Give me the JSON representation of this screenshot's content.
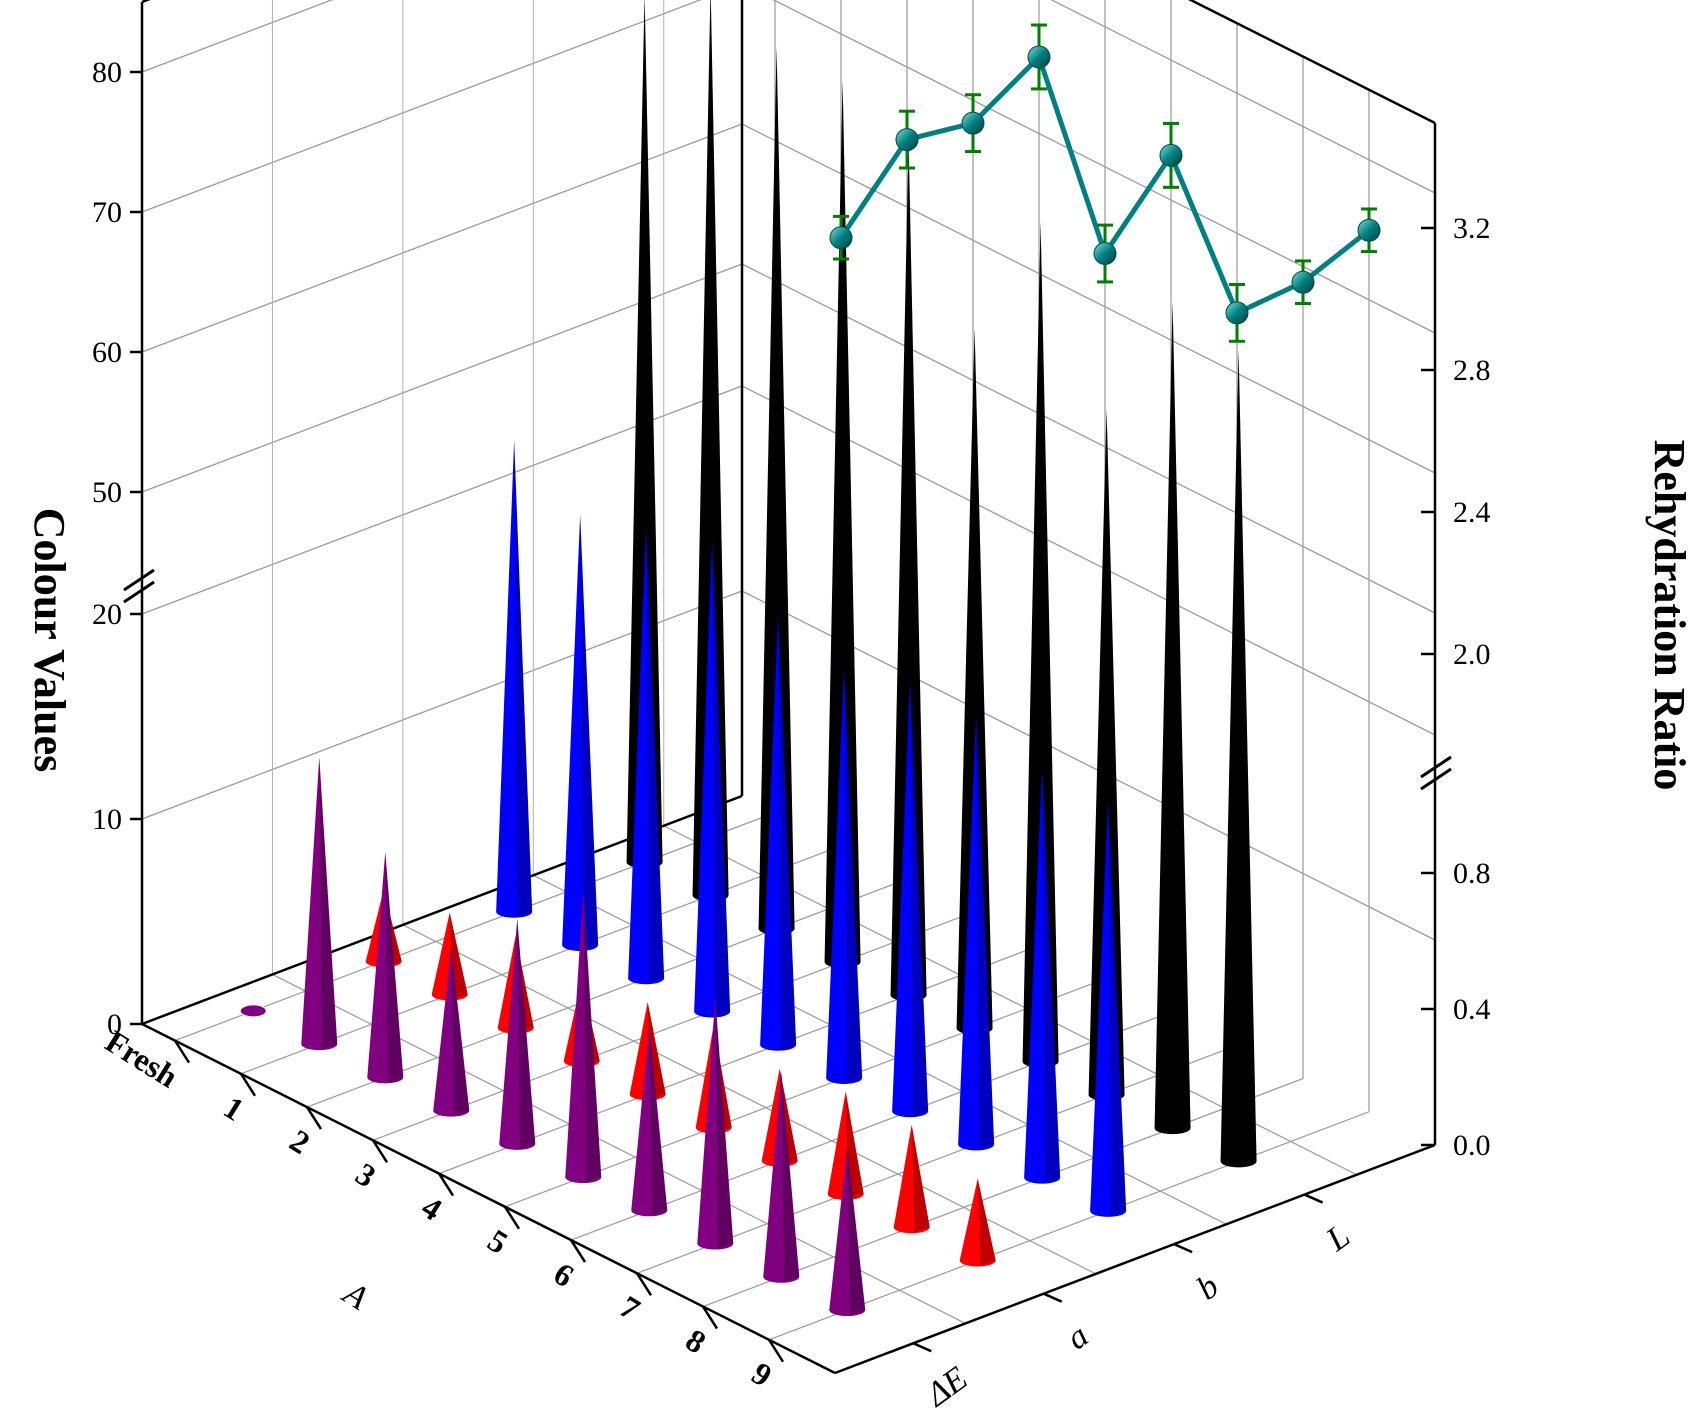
{
  "chart_data": {
    "type": "3d-cone-bar-with-line",
    "x_axis_title": "A",
    "categories": [
      "Fresh",
      "1",
      "2",
      "3",
      "4",
      "5",
      "6",
      "7",
      "8",
      "9"
    ],
    "series": [
      {
        "name": "ΔE",
        "color": "#800080",
        "values": [
          0,
          14,
          11,
          8,
          11,
          14,
          9,
          12,
          10,
          8
        ]
      },
      {
        "name": "a",
        "color": "#ff0000",
        "values": [
          3.5,
          4,
          4.5,
          4,
          4.5,
          5,
          4.5,
          5,
          5,
          4
        ]
      },
      {
        "name": "b",
        "color": "#0000ff",
        "values": [
          23,
          21,
          22,
          23,
          21,
          20,
          21,
          21,
          20,
          20
        ]
      },
      {
        "name": "L",
        "color": "#000000",
        "values": [
          74,
          77,
          75,
          75,
          73,
          62,
          72,
          61,
          71,
          70
        ]
      }
    ],
    "left_axis": {
      "title": "Colour Values",
      "ticks": [
        "0",
        "10",
        "20",
        "50",
        "60",
        "70",
        "80"
      ],
      "break": true
    },
    "right_axis": {
      "title": "Rehydration Ratio",
      "ticks": [
        "0.0",
        "0.4",
        "0.8",
        "2.0",
        "2.4",
        "2.8",
        "3.2"
      ],
      "break": true
    },
    "line_series": {
      "color": "#008080",
      "error_bar_color": "#008000",
      "values": [
        2.33,
        2.7,
        2.84,
        3.12,
        2.66,
        3.03,
        2.68,
        2.86,
        3.1
      ],
      "errors": [
        0.06,
        0.08,
        0.08,
        0.09,
        0.08,
        0.09,
        0.08,
        0.06,
        0.06
      ]
    },
    "grid": true
  }
}
